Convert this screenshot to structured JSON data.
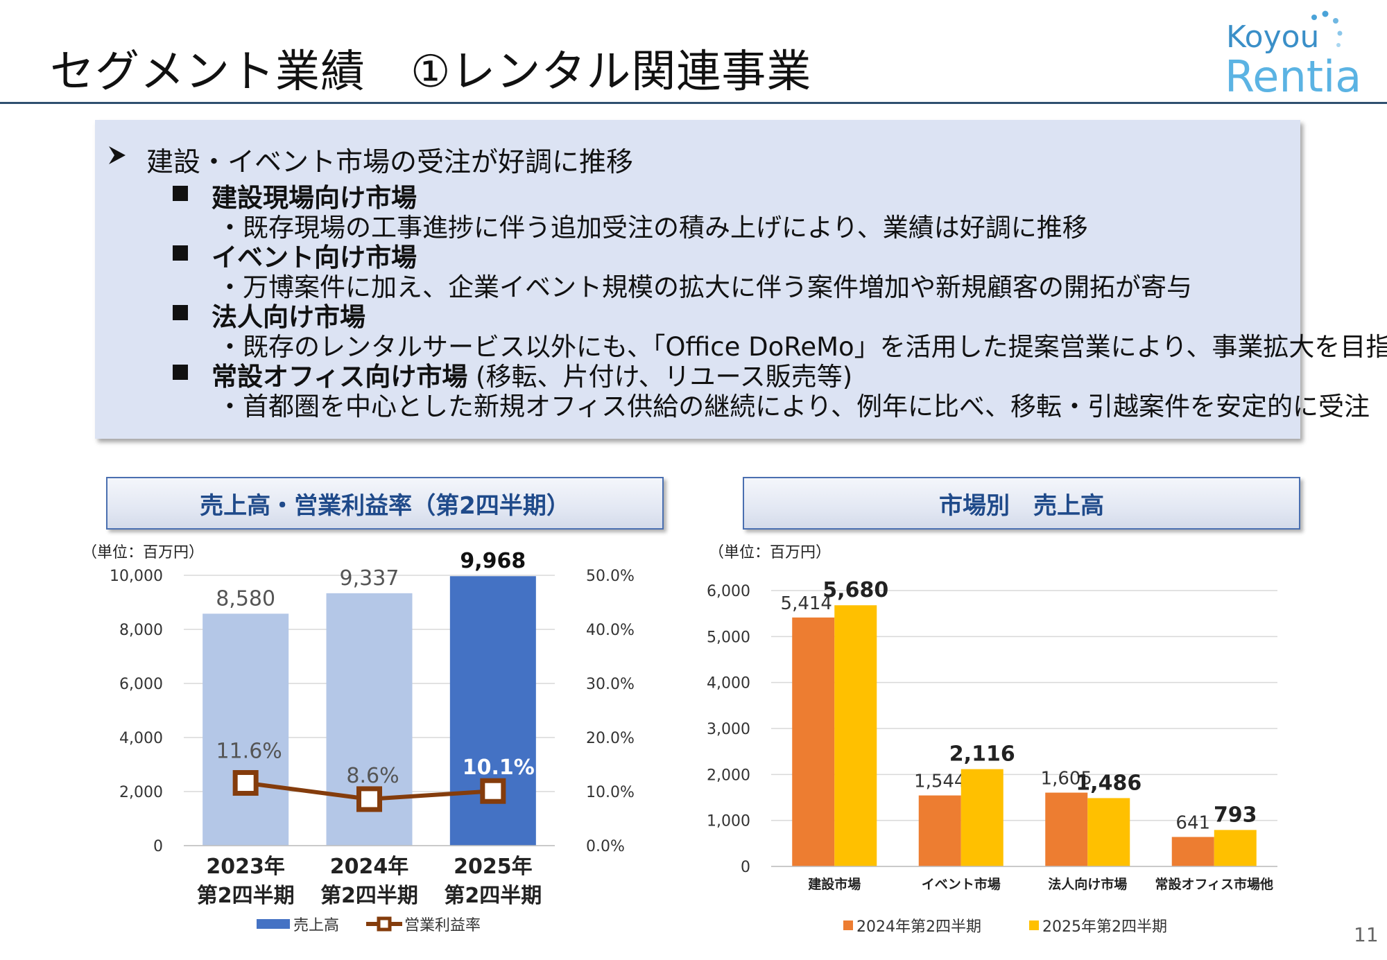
{
  "title": "セグメント業績　①レンタル関連事業",
  "logo": {
    "line1": "Koyou",
    "line2": "Rentia"
  },
  "summary": {
    "lead": "建設・イベント市場の受注が好調に推移",
    "segments": [
      {
        "heading": "建設現場向け市場",
        "suffix": "",
        "body": "・既存現場の工事進捗に伴う追加受注の積み上げにより、業績は好調に推移"
      },
      {
        "heading": "イベント向け市場",
        "suffix": "",
        "body": "・万博案件に加え、企業イベント規模の拡大に伴う案件増加や新規顧客の開拓が寄与"
      },
      {
        "heading": "法人向け市場",
        "suffix": "",
        "body": "・既存のレンタルサービス以外にも、「Office DoReMo」を活用した提案営業により、事業拡大を目指す"
      },
      {
        "heading": "常設オフィス向け市場",
        "suffix": " (移転、片付け、リユース販売等)",
        "body": "・首都圏を中心とした新規オフィス供給の継続により、例年に比べ、移転・引越案件を安定的に受注"
      }
    ]
  },
  "left_chart_header": "売上高・営業利益率（第2四半期）",
  "right_chart_header": "市場別　売上高",
  "unit_label": "（単位：百万円）",
  "page_number": "11",
  "colors": {
    "light_blue": "#b4c7e7",
    "blue": "#4472c4",
    "brown": "#843c0c",
    "orange": "#ed7d31",
    "yellow": "#ffc000"
  },
  "chart_data": [
    {
      "type": "bar",
      "categories": [
        [
          "2023年",
          "第2四半期"
        ],
        [
          "2024年",
          "第2四半期"
        ],
        [
          "2025年",
          "第2四半期"
        ]
      ],
      "series": [
        {
          "name": "売上高",
          "values": [
            8580,
            9337,
            9968
          ],
          "labels": [
            "8,580",
            "9,337",
            "9,968"
          ],
          "axis": "left"
        },
        {
          "name": "営業利益率",
          "type": "line",
          "values": [
            11.6,
            8.6,
            10.1
          ],
          "labels": [
            "11.6%",
            "8.6%",
            "10.1%"
          ],
          "axis": "right"
        }
      ],
      "ylim": [
        0,
        10000
      ],
      "yticks": [
        "0",
        "2,000",
        "4,000",
        "6,000",
        "8,000",
        "10,000"
      ],
      "y2lim": [
        0,
        50
      ],
      "y2ticks": [
        "0.0%",
        "10.0%",
        "20.0%",
        "30.0%",
        "40.0%",
        "50.0%"
      ],
      "grid": true,
      "legend": "bottom"
    },
    {
      "type": "bar",
      "categories": [
        "建設市場",
        "イベント市場",
        "法人向け市場",
        "常設オフィス市場他"
      ],
      "series": [
        {
          "name": "2024年第2四半期",
          "values": [
            5414,
            1544,
            1605,
            641
          ],
          "labels": [
            "5,414",
            "1,544",
            "1,605",
            "641"
          ]
        },
        {
          "name": "2025年第2四半期",
          "values": [
            5680,
            2116,
            1486,
            793
          ],
          "labels": [
            "5,680",
            "2,116",
            "1,486",
            "793"
          ]
        }
      ],
      "ylim": [
        0,
        6000
      ],
      "yticks": [
        "0",
        "1,000",
        "2,000",
        "3,000",
        "4,000",
        "5,000",
        "6,000"
      ],
      "grid": true,
      "legend": "bottom"
    }
  ]
}
